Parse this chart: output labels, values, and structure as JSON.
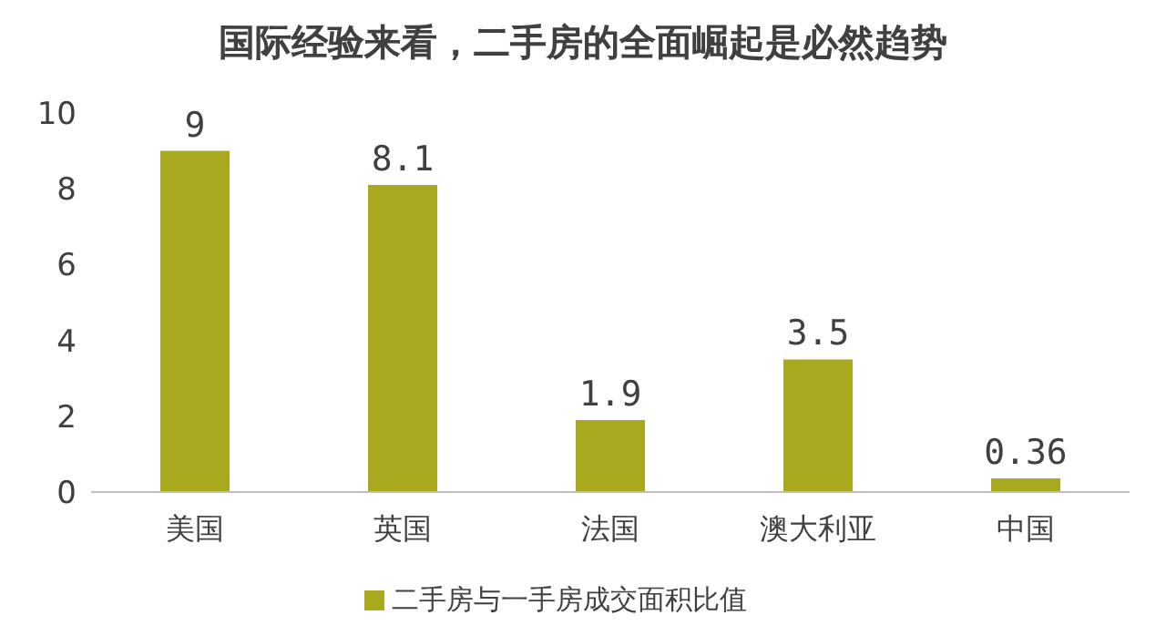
{
  "chart_data": {
    "type": "bar",
    "title": "国际经验来看，二手房的全面崛起是必然趋势",
    "categories": [
      "美国",
      "英国",
      "法国",
      "澳大利亚",
      "中国"
    ],
    "series": [
      {
        "name": "二手房与一手房成交面积比值",
        "color": "#a9a920",
        "values": [
          9,
          8.1,
          1.9,
          3.5,
          0.36
        ]
      }
    ],
    "ylim": [
      0,
      10
    ],
    "yticks": [
      0,
      2,
      4,
      6,
      8,
      10
    ],
    "grid": false,
    "legend": "bottom",
    "data_labels": true
  }
}
